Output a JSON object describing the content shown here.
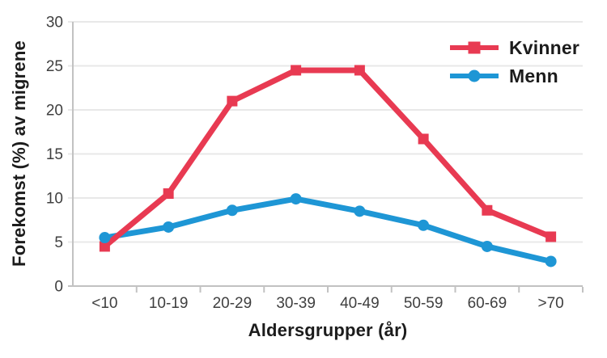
{
  "chart_data": {
    "type": "line",
    "title": "",
    "xlabel": "Aldersgrupper (år)",
    "ylabel": "Forekomst (%) av migrene",
    "categories": [
      "<10",
      "10-19",
      "20-29",
      "30-39",
      "40-49",
      "50-59",
      "60-69",
      ">70"
    ],
    "series": [
      {
        "name": "Kvinner",
        "marker": "square",
        "color": "#e83a52",
        "values": [
          4.5,
          10.5,
          21.0,
          24.5,
          24.5,
          16.7,
          8.6,
          5.6
        ]
      },
      {
        "name": "Menn",
        "marker": "circle",
        "color": "#1e96d5",
        "values": [
          5.5,
          6.7,
          8.6,
          9.9,
          8.5,
          6.9,
          4.5,
          2.8
        ]
      }
    ],
    "ylim": [
      0,
      30
    ],
    "yticks": [
      0,
      5,
      10,
      15,
      20,
      25,
      30
    ],
    "grid": true,
    "legend_position": "top-right"
  },
  "colors": {
    "series_kvinner": "#e83a52",
    "series_menn": "#1e96d5",
    "gridline": "#e8e8e8",
    "axis_line": "#c2c2c2",
    "tick_label": "#3f3f3f",
    "axis_title": "#1c1c1c",
    "background": "#ffffff"
  }
}
